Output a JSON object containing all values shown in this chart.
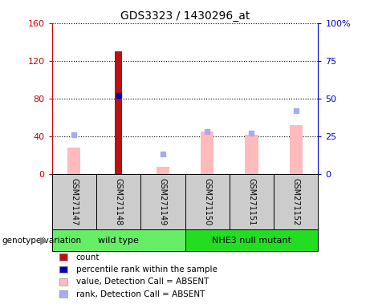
{
  "title": "GDS3323 / 1430296_at",
  "samples": [
    "GSM271147",
    "GSM271148",
    "GSM271149",
    "GSM271150",
    "GSM271151",
    "GSM271152"
  ],
  "groups": [
    {
      "name": "wild type",
      "samples": [
        0,
        1,
        2
      ],
      "color": "#66ee66"
    },
    {
      "name": "NHE3 null mutant",
      "samples": [
        3,
        4,
        5
      ],
      "color": "#22dd22"
    }
  ],
  "count_values": [
    0,
    130,
    0,
    0,
    0,
    0
  ],
  "count_color": "#bb1111",
  "percentile_rank_values": [
    0,
    52,
    0,
    0,
    0,
    0
  ],
  "percentile_rank_color": "#0000bb",
  "value_absent": [
    28,
    0,
    8,
    45,
    42,
    52
  ],
  "value_absent_color": "#ffbbbb",
  "rank_absent": [
    26,
    0,
    13,
    28,
    27,
    42
  ],
  "rank_absent_color": "#aaaaee",
  "ylim_left": [
    0,
    160
  ],
  "ylim_right": [
    0,
    100
  ],
  "yticks_left": [
    0,
    40,
    80,
    120,
    160
  ],
  "yticks_right": [
    0,
    25,
    50,
    75,
    100
  ],
  "ytick_labels_left": [
    "0",
    "40",
    "80",
    "120",
    "160"
  ],
  "ytick_labels_right": [
    "0",
    "25",
    "50",
    "75",
    "100%"
  ],
  "left_axis_color": "#cc0000",
  "right_axis_color": "#0000cc",
  "plot_bg_color": "#ffffff",
  "sample_area_color": "#cccccc",
  "value_bar_width": 0.3,
  "count_bar_width": 0.18,
  "legend_items": [
    {
      "label": "count",
      "color": "#bb1111"
    },
    {
      "label": "percentile rank within the sample",
      "color": "#0000bb"
    },
    {
      "label": "value, Detection Call = ABSENT",
      "color": "#ffbbbb"
    },
    {
      "label": "rank, Detection Call = ABSENT",
      "color": "#aaaaee"
    }
  ]
}
